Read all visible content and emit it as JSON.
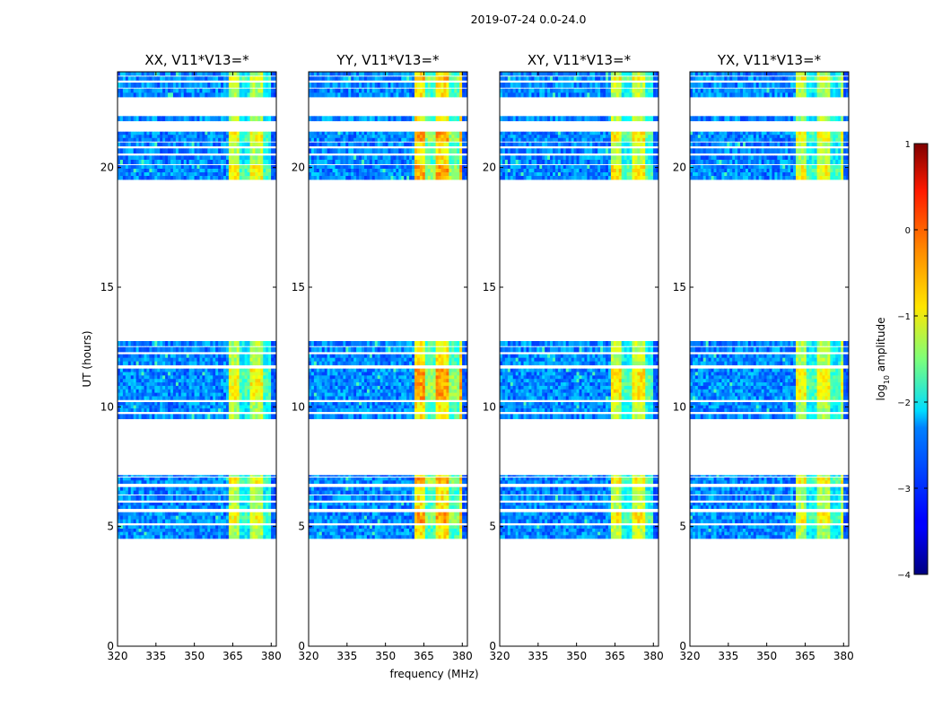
{
  "chart_data": {
    "type": "heatmap",
    "title": "2019-07-24 0.0-24.0",
    "xlabel": "frequency (MHz)",
    "ylabel": "UT (hours)",
    "xlim": [
      320,
      382
    ],
    "ylim": [
      0,
      24
    ],
    "x_ticks": [
      {
        "value": 320,
        "label": "320"
      },
      {
        "value": 335,
        "label": "335"
      },
      {
        "value": 350,
        "label": "350"
      },
      {
        "value": 365,
        "label": "365"
      },
      {
        "value": 380,
        "label": "380"
      }
    ],
    "y_ticks": [
      {
        "value": 0,
        "label": "0"
      },
      {
        "value": 5,
        "label": "5"
      },
      {
        "value": 10,
        "label": "10"
      },
      {
        "value": 15,
        "label": "15"
      },
      {
        "value": 20,
        "label": "20"
      }
    ],
    "panels": [
      {
        "title": "XX, V11*V13=*",
        "hot_start": 363,
        "hot_level": 0.62
      },
      {
        "title": "YY, V11*V13=*",
        "hot_start": 361,
        "hot_level": 0.72
      },
      {
        "title": "XY, V11*V13=*",
        "hot_start": 363,
        "hot_level": 0.64
      },
      {
        "title": "YX, V11*V13=*",
        "hot_start": 361,
        "hot_level": 0.62
      }
    ],
    "observed_time_blocks_hours": [
      [
        4.5,
        5.05
      ],
      [
        5.15,
        5.6
      ],
      [
        5.75,
        6.0
      ],
      [
        6.1,
        6.3
      ],
      [
        6.35,
        6.65
      ],
      [
        6.8,
        7.05
      ],
      [
        7.1,
        7.15
      ],
      [
        9.5,
        9.7
      ],
      [
        9.8,
        10.2
      ],
      [
        10.3,
        11.6
      ],
      [
        11.75,
        12.2
      ],
      [
        12.3,
        12.5
      ],
      [
        12.55,
        12.75
      ],
      [
        19.5,
        20.1
      ],
      [
        20.15,
        20.5
      ],
      [
        20.6,
        20.8
      ],
      [
        20.9,
        21.05
      ],
      [
        21.1,
        21.5
      ],
      [
        21.95,
        22.15
      ],
      [
        22.95,
        23.3
      ],
      [
        23.35,
        23.55
      ],
      [
        23.65,
        23.8
      ],
      [
        23.85,
        24.0
      ]
    ],
    "colorbar": {
      "label_prefix": "log",
      "label_sub": "10",
      "label_suffix": " amplitude",
      "range": [
        -4,
        1
      ],
      "colormap": "jet",
      "ticks": [
        {
          "value": 1,
          "label": "1"
        },
        {
          "value": 0,
          "label": "0"
        },
        {
          "value": -1,
          "label": "−1"
        },
        {
          "value": -2,
          "label": "−2"
        },
        {
          "value": -3,
          "label": "−3"
        },
        {
          "value": -4,
          "label": "−4"
        }
      ]
    }
  }
}
